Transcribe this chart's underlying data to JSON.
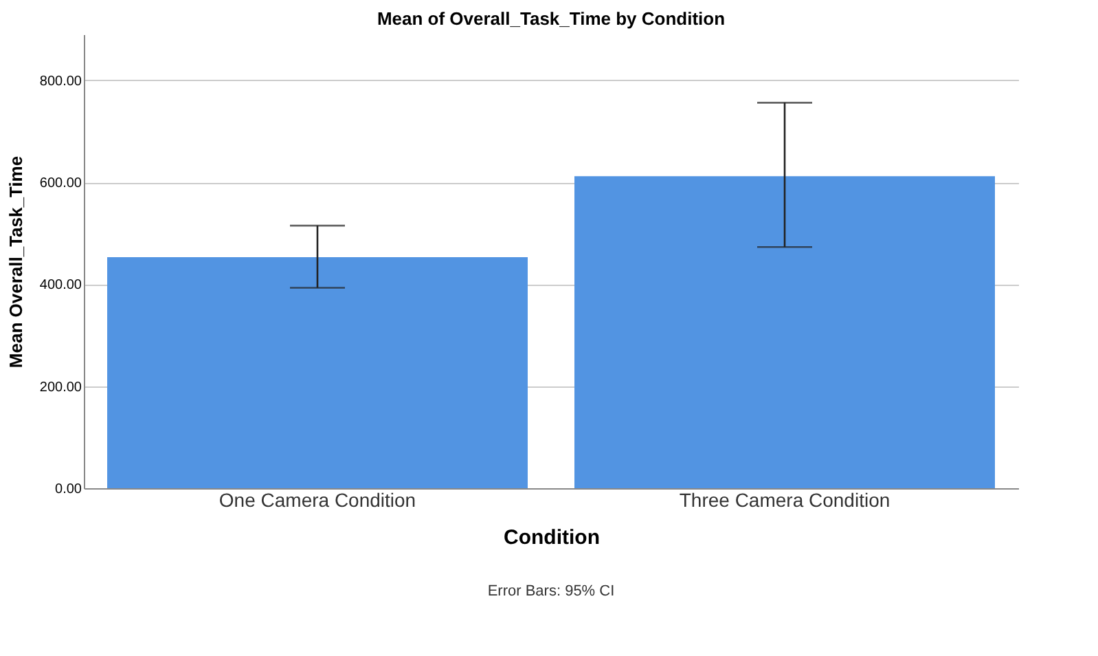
{
  "chart_data": {
    "type": "bar",
    "title": "Mean of Overall_Task_Time by Condition",
    "xlabel": "Condition",
    "ylabel": "Mean Overall_Task_Time",
    "categories": [
      "One Camera Condition",
      "Three Camera Condition"
    ],
    "values": [
      453,
      612
    ],
    "color": "#5294e2",
    "errors": [
      [
        393,
        515
      ],
      [
        473,
        756
      ]
    ],
    "ylim": [
      0,
      890
    ],
    "yticks": [
      {
        "value": 0,
        "label": "0.00"
      },
      {
        "value": 200,
        "label": "200.00"
      },
      {
        "value": 400,
        "label": "400.00"
      },
      {
        "value": 600,
        "label": "600.00"
      },
      {
        "value": 800,
        "label": "800.00"
      }
    ],
    "grid": "y",
    "annotations": [
      "Error Bars: 95% CI"
    ]
  }
}
